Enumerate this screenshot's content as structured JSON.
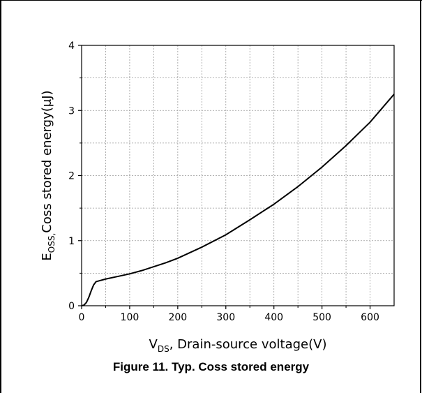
{
  "chart_data": {
    "type": "line",
    "title": "",
    "xlabel": {
      "symbol": "V",
      "subscript": "DS",
      "text": ", Drain-source voltage(V)"
    },
    "ylabel": {
      "symbol": "E",
      "subscript": "OSS,",
      "text": "Coss stored energy(μJ)"
    },
    "xlim": [
      0,
      650
    ],
    "ylim": [
      0,
      4
    ],
    "xticks": [
      0,
      100,
      200,
      300,
      400,
      500,
      600
    ],
    "yticks": [
      0,
      1,
      2,
      3,
      4
    ],
    "grid": true,
    "series": [
      {
        "x": [
          0,
          5,
          10,
          15,
          20,
          25,
          30,
          35,
          50,
          75,
          100,
          125,
          150,
          175,
          200,
          250,
          300,
          350,
          400,
          450,
          500,
          550,
          600,
          650
        ],
        "values": [
          0,
          0.01,
          0.05,
          0.13,
          0.23,
          0.32,
          0.37,
          0.38,
          0.41,
          0.45,
          0.49,
          0.54,
          0.6,
          0.66,
          0.73,
          0.9,
          1.09,
          1.32,
          1.56,
          1.83,
          2.13,
          2.46,
          2.82,
          3.25
        ],
        "color": "#000000"
      }
    ]
  },
  "caption": "Figure 11. Typ. Coss stored energy"
}
